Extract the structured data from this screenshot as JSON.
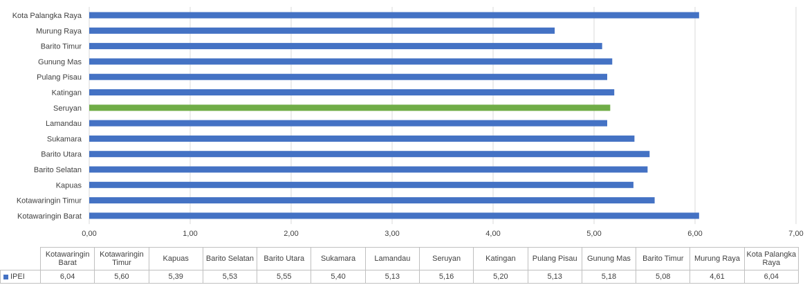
{
  "chart_data": {
    "type": "bar",
    "orientation": "horizontal",
    "categories": [
      "Kotawaringin Barat",
      "Kotawaringin Timur",
      "Kapuas",
      "Barito Selatan",
      "Barito Utara",
      "Sukamara",
      "Lamandau",
      "Seruyan",
      "Katingan",
      "Pulang Pisau",
      "Gunung Mas",
      "Barito Timur",
      "Murung Raya",
      "Kota Palangka Raya"
    ],
    "table_headers": [
      "Kotawaringin Barat",
      "Kotawaringin Timur",
      "Kapuas",
      "Barito Selatan",
      "Barito Utara",
      "Sukamara",
      "Lamandau",
      "Seruyan",
      "Katingan",
      "Pulang Pisau",
      "Gunung Mas",
      "Barito Timur",
      "Murung Raya",
      "Kota Palangka Raya"
    ],
    "series": [
      {
        "name": "IPEI",
        "values": [
          6.04,
          5.6,
          5.39,
          5.53,
          5.55,
          5.4,
          5.13,
          5.16,
          5.2,
          5.13,
          5.18,
          5.08,
          4.61,
          6.04
        ],
        "value_labels": [
          "6,04",
          "5,60",
          "5,39",
          "5,53",
          "5,55",
          "5,40",
          "5,13",
          "5,16",
          "5,20",
          "5,13",
          "5,18",
          "5,08",
          "4,61",
          "6,04"
        ]
      }
    ],
    "highlight_category": "Seruyan",
    "xlim": [
      0,
      7
    ],
    "x_ticks": [
      0,
      1,
      2,
      3,
      4,
      5,
      6,
      7
    ],
    "x_tick_labels": [
      "0,00",
      "1,00",
      "2,00",
      "3,00",
      "4,00",
      "5,00",
      "6,00",
      "7,00"
    ],
    "grid": true,
    "legend": "in data table",
    "colors": {
      "bar": "#4472c4",
      "highlight": "#70ad47"
    }
  }
}
